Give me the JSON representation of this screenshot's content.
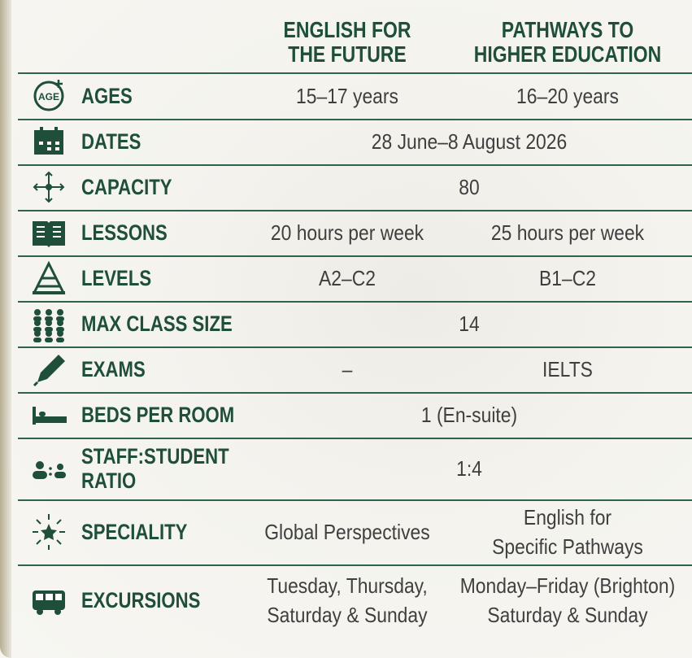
{
  "table": {
    "columns": [
      "ENGLISH FOR\nTHE FUTURE",
      "PATHWAYS TO\nHIGHER EDUCATION"
    ],
    "rows": [
      {
        "icon_text": "AGE",
        "label": "AGES",
        "values": [
          "15–17 years",
          "16–20 years"
        ]
      },
      {
        "label": "DATES",
        "values": [
          "28 June–8 August 2026"
        ]
      },
      {
        "label": "CAPACITY",
        "values": [
          "80"
        ]
      },
      {
        "label": "LESSONS",
        "values": [
          "20 hours per week",
          "25 hours per week"
        ]
      },
      {
        "label": "LEVELS",
        "values": [
          "A2–C2",
          "B1–C2"
        ]
      },
      {
        "label": "MAX CLASS SIZE",
        "values": [
          "14"
        ]
      },
      {
        "label": "EXAMS",
        "values": [
          "–",
          "IELTS"
        ]
      },
      {
        "label": "BEDS PER ROOM",
        "values": [
          "1 (En-suite)"
        ]
      },
      {
        "label": "STAFF:STUDENT\nRATIO",
        "values": [
          "1:4"
        ]
      },
      {
        "label": "SPECIALITY",
        "values": [
          "Global Perspectives",
          "English for\nSpecific Pathways"
        ]
      },
      {
        "label": "EXCURSIONS",
        "values": [
          "Tuesday, Thursday,\nSaturday & Sunday",
          "Monday–Friday (Brighton)\nSaturday & Sunday"
        ]
      }
    ]
  }
}
